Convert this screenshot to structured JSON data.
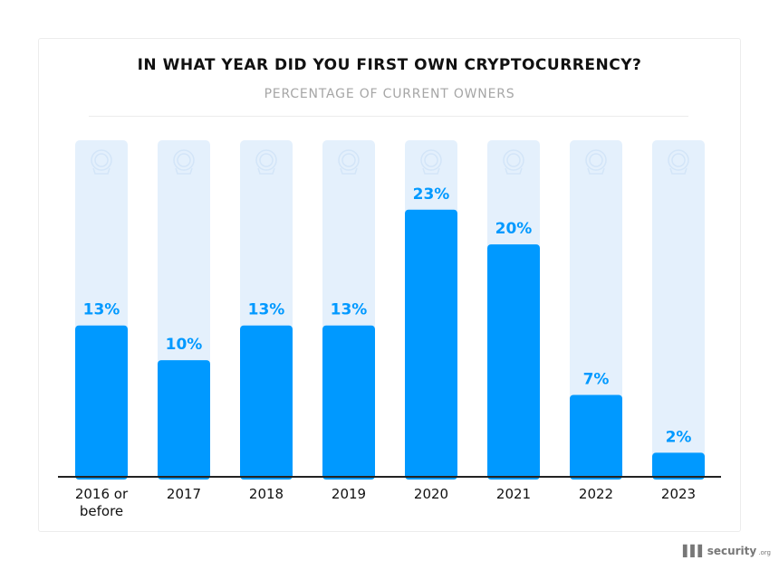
{
  "chart_data": {
    "type": "bar",
    "title": "IN WHAT YEAR DID YOU FIRST OWN CRYPTOCURRENCY?",
    "subtitle": "PERCENTAGE OF CURRENT OWNERS",
    "categories": [
      [
        "2016 or",
        "before"
      ],
      [
        "2017"
      ],
      [
        "2018"
      ],
      [
        "2019"
      ],
      [
        "2020"
      ],
      [
        "2021"
      ],
      [
        "2022"
      ],
      [
        "2023"
      ]
    ],
    "values": [
      13,
      10,
      13,
      13,
      23,
      20,
      7,
      2
    ],
    "data_labels": [
      "13%",
      "10%",
      "13%",
      "13%",
      "23%",
      "20%",
      "7%",
      "2%"
    ],
    "unit": "%",
    "ylim": [
      0,
      29
    ],
    "grid": false,
    "colors": {
      "bar": "#0099ff",
      "track": "#e4f0fc",
      "label": "#0099ff",
      "axis": "#222222"
    }
  },
  "branding": {
    "logo": "security",
    "logo_suffix": ".org"
  }
}
